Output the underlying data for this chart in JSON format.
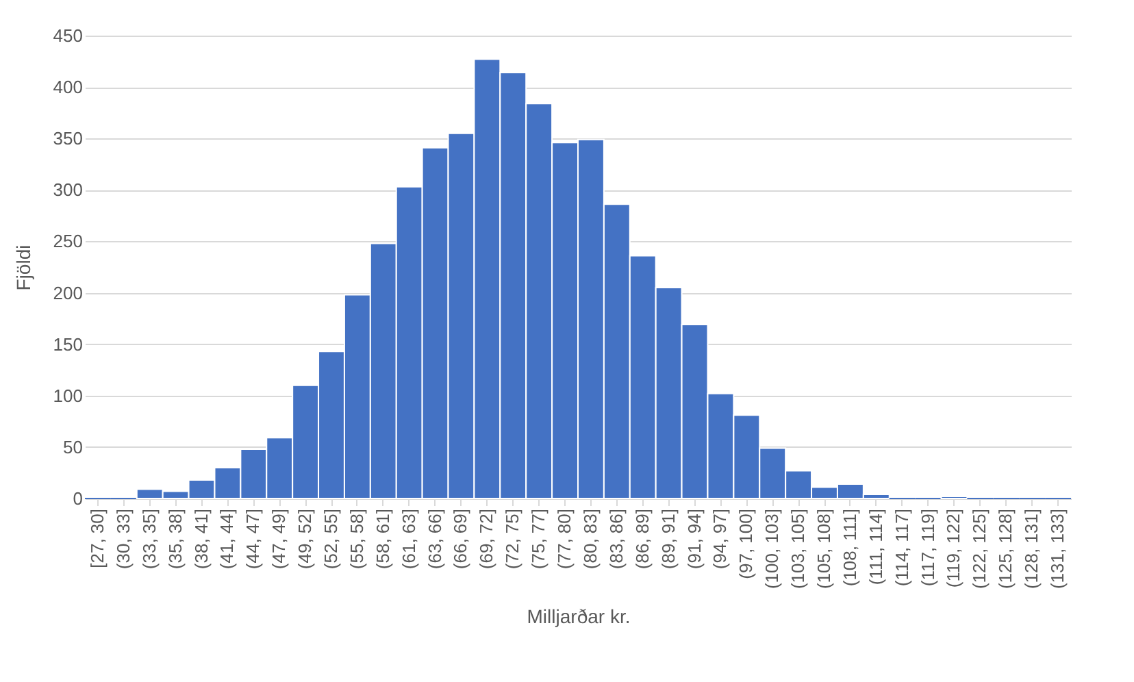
{
  "chart_data": {
    "type": "bar",
    "xlabel": "Milljarðar kr.",
    "ylabel": "Fjöldi",
    "categories": [
      "[27, 30]",
      "(30, 33]",
      "(33, 35]",
      "(35, 38]",
      "(38, 41]",
      "(41, 44]",
      "(44, 47]",
      "(47, 49]",
      "(49, 52]",
      "(52, 55]",
      "(55, 58]",
      "(58, 61]",
      "(61, 63]",
      "(63, 66]",
      "(66, 69]",
      "(69, 72]",
      "(72, 75]",
      "(75, 77]",
      "(77, 80]",
      "(80, 83]",
      "(83, 86]",
      "(86, 89]",
      "(89, 91]",
      "(91, 94]",
      "(94, 97]",
      "(97, 100]",
      "(100, 103]",
      "(103, 105]",
      "(105, 108]",
      "(108, 111]",
      "(111, 114]",
      "(114, 117]",
      "(117, 119]",
      "(119, 122]",
      "(122, 125]",
      "(125, 128]",
      "(128, 131]",
      "(131, 133]"
    ],
    "values": [
      0,
      0,
      9,
      7,
      18,
      30,
      48,
      59,
      110,
      143,
      198,
      248,
      303,
      341,
      355,
      427,
      414,
      384,
      346,
      349,
      286,
      236,
      205,
      169,
      102,
      81,
      49,
      27,
      11,
      14,
      4,
      0,
      0,
      2,
      0,
      0,
      0,
      0
    ],
    "color": "#4472c4",
    "ylim": [
      0,
      450
    ],
    "yticks": [
      0,
      50,
      100,
      150,
      200,
      250,
      300,
      350,
      400,
      450
    ],
    "grid": "y"
  }
}
